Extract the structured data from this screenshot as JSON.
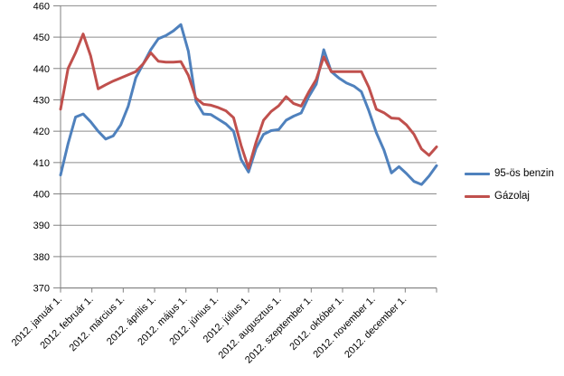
{
  "chart_data": {
    "type": "line",
    "title": "",
    "xlabel": "",
    "ylabel": "",
    "grid": true,
    "legend_position": "right",
    "x_axis": {
      "tick_labels": [
        "2012. január 1.",
        "2012. február 1.",
        "2012. március 1.",
        "2012. április 1.",
        "2012. május 1.",
        "2012. június 1.",
        "2012. július 1.",
        "2012. augusztus 1.",
        "2012. szeptember 1.",
        "2012. október 1.",
        "2012. november 1.",
        "2012. december 1."
      ],
      "tick_count": 13,
      "points_per_series": 51,
      "unit": "weekly samples across 2012"
    },
    "y_axis": {
      "min": 370,
      "max": 460,
      "step": 10,
      "tick_labels": [
        "460",
        "450",
        "440",
        "430",
        "420",
        "410",
        "400",
        "390",
        "380",
        "370"
      ]
    },
    "series": [
      {
        "name": "95-ös benzin",
        "color": "#4F81BD",
        "values": [
          406,
          416,
          424.5,
          425.5,
          423,
          420,
          417.5,
          418.5,
          422,
          428,
          437,
          441.5,
          446,
          449.5,
          450.5,
          452,
          454,
          445.5,
          429.5,
          425.5,
          425.3,
          423.8,
          422.3,
          420,
          411,
          407,
          414.5,
          419,
          420.2,
          420.5,
          423.5,
          424.8,
          425.8,
          431,
          435,
          446,
          439,
          437,
          435.4,
          434.4,
          432.6,
          426.5,
          419.5,
          414,
          406.7,
          408.7,
          406.5,
          404,
          403,
          405.7,
          409
        ]
      },
      {
        "name": "Gázolaj",
        "color": "#C0504D",
        "values": [
          427,
          440,
          445,
          451,
          444,
          433.5,
          434.8,
          436,
          437,
          438,
          439,
          441.5,
          445,
          442.3,
          442,
          442,
          442.2,
          437.8,
          430.5,
          428.6,
          428.3,
          427.5,
          426.5,
          424.3,
          415.5,
          408.2,
          416.5,
          423.5,
          426.3,
          428.1,
          431,
          428.8,
          428,
          432.5,
          436.5,
          443.7,
          439,
          439,
          439,
          439,
          439,
          434,
          427,
          425.9,
          424.2,
          424,
          422,
          419,
          414.3,
          412.3,
          415
        ]
      }
    ]
  },
  "style": {
    "gridline_color": "#8C8C8C",
    "axis_color": "#808080",
    "label_color": "#000000",
    "background": "#FFFFFF"
  }
}
